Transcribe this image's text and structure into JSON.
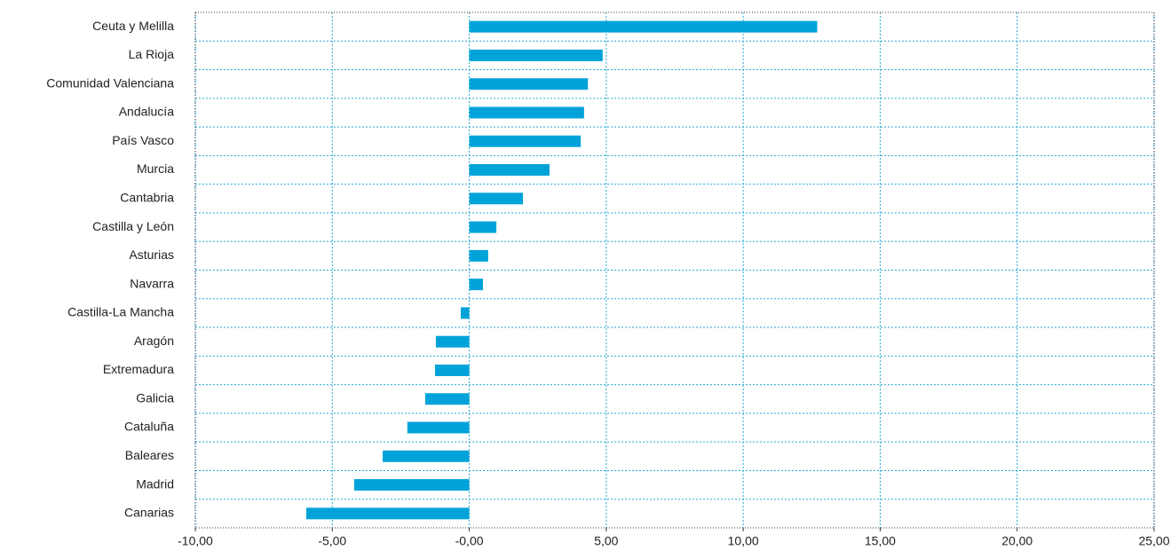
{
  "chart_data": {
    "type": "hbar",
    "categories": [
      "Ceuta y Melilla",
      "La Rioja",
      "Comunidad Valenciana",
      "Andalucía",
      "País Vasco",
      "Murcia",
      "Cantabria",
      "Castilla y León",
      "Asturias",
      "Navarra",
      "Castilla-La Mancha",
      "Aragón",
      "Extremadura",
      "Galicia",
      "Cataluña",
      "Baleares",
      "Madrid",
      "Canarias"
    ],
    "values": [
      12.7,
      4.87,
      4.33,
      4.19,
      4.07,
      2.93,
      1.96,
      0.99,
      0.69,
      0.5,
      -0.31,
      -1.22,
      -1.25,
      -1.61,
      -2.26,
      -3.16,
      -4.2,
      -5.95
    ],
    "color": "#00a3d9",
    "xlim": [
      -10,
      25
    ],
    "xticks": [
      {
        "value": -10,
        "label": "-10,00"
      },
      {
        "value": -5,
        "label": "-5,00"
      },
      {
        "value": 0,
        "label": "-0,00"
      },
      {
        "value": 5,
        "label": "5,00"
      },
      {
        "value": 10,
        "label": "10,00"
      },
      {
        "value": 15,
        "label": "15,00"
      },
      {
        "value": 20,
        "label": "20,00"
      },
      {
        "value": 25,
        "label": "25,00"
      }
    ],
    "grid": true
  }
}
